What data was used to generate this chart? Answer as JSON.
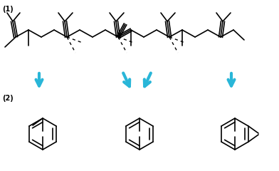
{
  "background_color": "#ffffff",
  "label1": "(1)",
  "label2": "(2)",
  "arrow_color": "#29b6d8",
  "bond_color": "#000000",
  "fig_width": 3.92,
  "fig_height": 2.4,
  "dpi": 100
}
